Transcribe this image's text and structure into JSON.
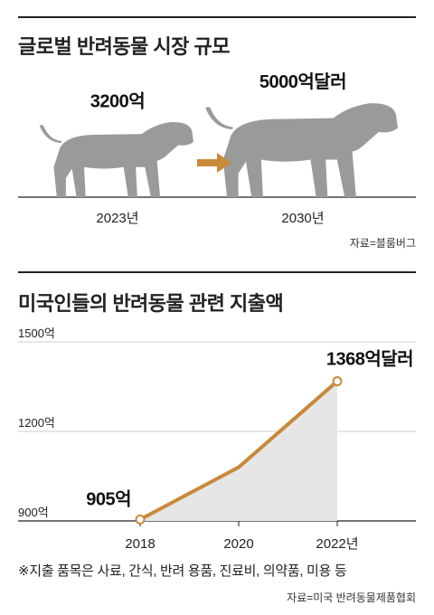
{
  "chart_data": [
    {
      "type": "bar",
      "title": "글로벌 반려동물 시장 규모",
      "categories": [
        "2023년",
        "2030년"
      ],
      "values": [
        3200,
        5000
      ],
      "value_labels": [
        "3200억",
        "5000억달러"
      ],
      "source": "자료=블룸버그",
      "colors": {
        "dog": "#9a9a9a",
        "arrow": "#c8893a"
      },
      "icons": {
        "bar_mark": "dog-silhouette-icon",
        "transition": "right-arrow-icon"
      }
    },
    {
      "type": "line",
      "title": "미국인들의 반려동물 관련 지출액",
      "x": [
        2018,
        2020,
        2022
      ],
      "x_tick_labels": [
        "2018",
        "2020",
        "2022년"
      ],
      "series": [
        {
          "values": [
            905,
            1080,
            1368
          ]
        }
      ],
      "y_tick_labels": [
        "1500억",
        "1200억",
        "900억"
      ],
      "ylim": [
        900,
        1500
      ],
      "point_labels": {
        "start": "905억",
        "end": "1368억달러"
      },
      "note": "※지출 품목은 사료, 간식, 반려 용품, 진료비, 의약품, 미용 등",
      "source": "자료=미국 반려동물제품협회",
      "colors": {
        "line": "#c8893a",
        "area": "#e6e6e6",
        "grid": "#bdbdbd"
      }
    }
  ]
}
